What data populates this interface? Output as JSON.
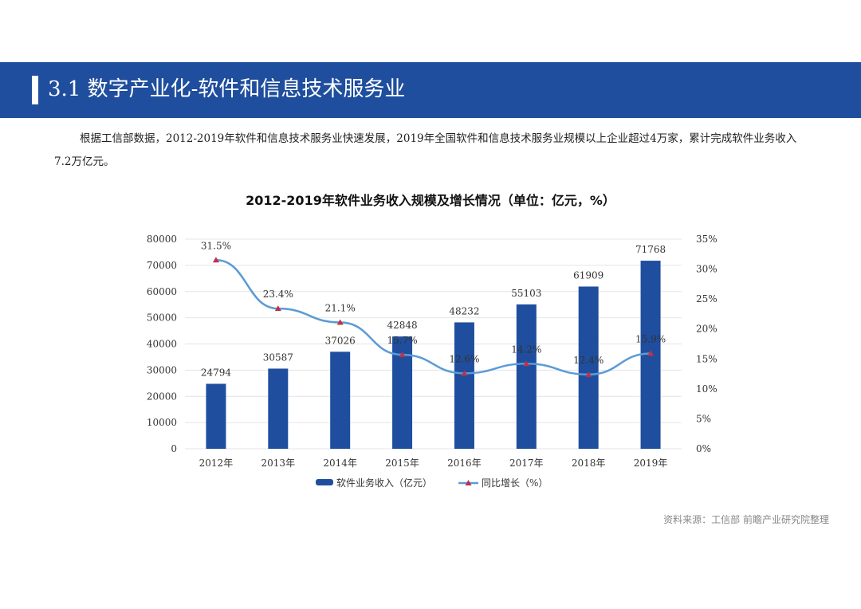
{
  "header": {
    "title": "3.1 数字产业化-软件和信息技术服务业"
  },
  "paragraph": "根据工信部数据，2012-2019年软件和信息技术服务业快速发展，2019年全国软件和信息技术服务业规模以上企业超过4万家，累计完成软件业务收入7.2万亿元。",
  "source": "资料来源：工信部 前瞻产业研究院整理",
  "chart_data": {
    "type": "bar+line",
    "title": "2012-2019年软件业务收入规模及增长情况（单位：亿元，%）",
    "categories": [
      "2012年",
      "2013年",
      "2014年",
      "2015年",
      "2016年",
      "2017年",
      "2018年",
      "2019年"
    ],
    "series": [
      {
        "name": "软件业务收入（亿元）",
        "type": "bar",
        "axis": "left",
        "color": "#1f4e9e",
        "values": [
          24794,
          30587,
          37026,
          42848,
          48232,
          55103,
          61909,
          71768
        ]
      },
      {
        "name": "同比增长（%）",
        "type": "line",
        "axis": "right",
        "color": "#5b9bd5",
        "marker_color": "#c0304a",
        "values": [
          31.5,
          23.4,
          21.1,
          15.7,
          12.6,
          14.2,
          12.4,
          15.9
        ]
      }
    ],
    "left_axis": {
      "ylim": [
        0,
        80000
      ],
      "ticks": [
        "0",
        "10000",
        "20000",
        "30000",
        "40000",
        "50000",
        "60000",
        "70000",
        "80000"
      ]
    },
    "right_axis": {
      "ylim": [
        0,
        35
      ],
      "ticks": [
        "0%",
        "5%",
        "10%",
        "15%",
        "20%",
        "25%",
        "30%",
        "35%"
      ]
    },
    "grid": true,
    "legend": "bottom"
  }
}
